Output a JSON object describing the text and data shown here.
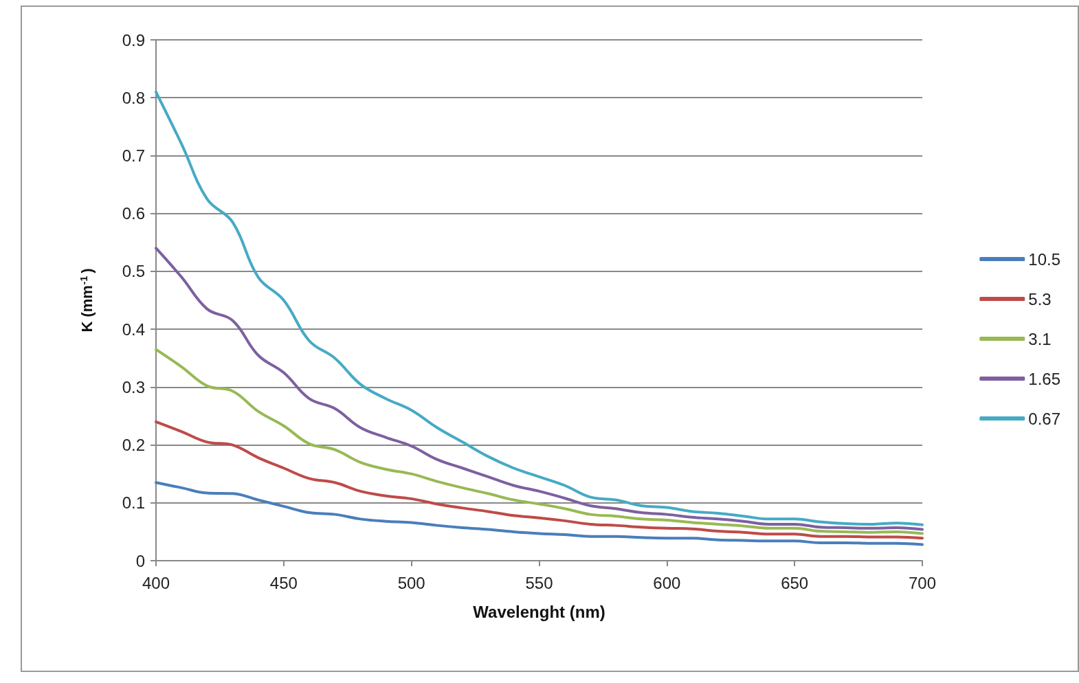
{
  "chart_data": {
    "type": "line",
    "xlabel": "Wavelenght (nm)",
    "ylabel": "K (mm$^{-1}$)",
    "x": [
      400,
      410,
      420,
      430,
      440,
      450,
      460,
      470,
      480,
      490,
      500,
      510,
      520,
      530,
      540,
      550,
      560,
      570,
      580,
      590,
      600,
      610,
      620,
      630,
      640,
      650,
      660,
      670,
      680,
      690,
      700
    ],
    "series": [
      {
        "name": "10.5",
        "color": "#4a7ebb",
        "values": [
          0.135,
          0.126,
          0.117,
          0.116,
          0.105,
          0.094,
          0.083,
          0.08,
          0.072,
          0.068,
          0.066,
          0.061,
          0.057,
          0.054,
          0.05,
          0.047,
          0.045,
          0.042,
          0.042,
          0.04,
          0.039,
          0.039,
          0.036,
          0.035,
          0.034,
          0.034,
          0.031,
          0.031,
          0.03,
          0.03,
          0.028
        ]
      },
      {
        "name": "5.3",
        "color": "#be4b48",
        "values": [
          0.24,
          0.223,
          0.205,
          0.2,
          0.178,
          0.16,
          0.142,
          0.135,
          0.12,
          0.112,
          0.107,
          0.098,
          0.091,
          0.085,
          0.078,
          0.074,
          0.069,
          0.063,
          0.061,
          0.058,
          0.056,
          0.055,
          0.051,
          0.049,
          0.046,
          0.046,
          0.042,
          0.042,
          0.041,
          0.041,
          0.039
        ]
      },
      {
        "name": "3.1",
        "color": "#98b954",
        "values": [
          0.365,
          0.335,
          0.302,
          0.293,
          0.258,
          0.233,
          0.202,
          0.192,
          0.17,
          0.158,
          0.15,
          0.137,
          0.126,
          0.116,
          0.105,
          0.098,
          0.09,
          0.08,
          0.077,
          0.072,
          0.07,
          0.066,
          0.063,
          0.06,
          0.056,
          0.056,
          0.051,
          0.05,
          0.049,
          0.05,
          0.047
        ]
      },
      {
        "name": "1.65",
        "color": "#7d60a0",
        "values": [
          0.54,
          0.49,
          0.435,
          0.415,
          0.355,
          0.325,
          0.28,
          0.263,
          0.23,
          0.213,
          0.198,
          0.175,
          0.16,
          0.145,
          0.13,
          0.12,
          0.108,
          0.095,
          0.09,
          0.083,
          0.08,
          0.075,
          0.072,
          0.068,
          0.063,
          0.063,
          0.058,
          0.057,
          0.056,
          0.057,
          0.054
        ]
      },
      {
        "name": "0.67",
        "color": "#46aac5",
        "values": [
          0.81,
          0.72,
          0.625,
          0.585,
          0.49,
          0.45,
          0.38,
          0.35,
          0.305,
          0.28,
          0.26,
          0.23,
          0.205,
          0.18,
          0.16,
          0.145,
          0.13,
          0.11,
          0.105,
          0.095,
          0.092,
          0.085,
          0.082,
          0.077,
          0.072,
          0.072,
          0.067,
          0.064,
          0.063,
          0.065,
          0.062
        ]
      }
    ],
    "xlim": [
      400,
      700
    ],
    "xticks": [
      400,
      450,
      500,
      550,
      600,
      650,
      700
    ],
    "ylim": [
      0,
      0.9
    ],
    "yticks": [
      0,
      0.1,
      0.2,
      0.3,
      0.4,
      0.5,
      0.6,
      0.7,
      0.8,
      0.9
    ],
    "grid": "y",
    "legend": "right",
    "marker": "none",
    "line_style": "solid"
  }
}
